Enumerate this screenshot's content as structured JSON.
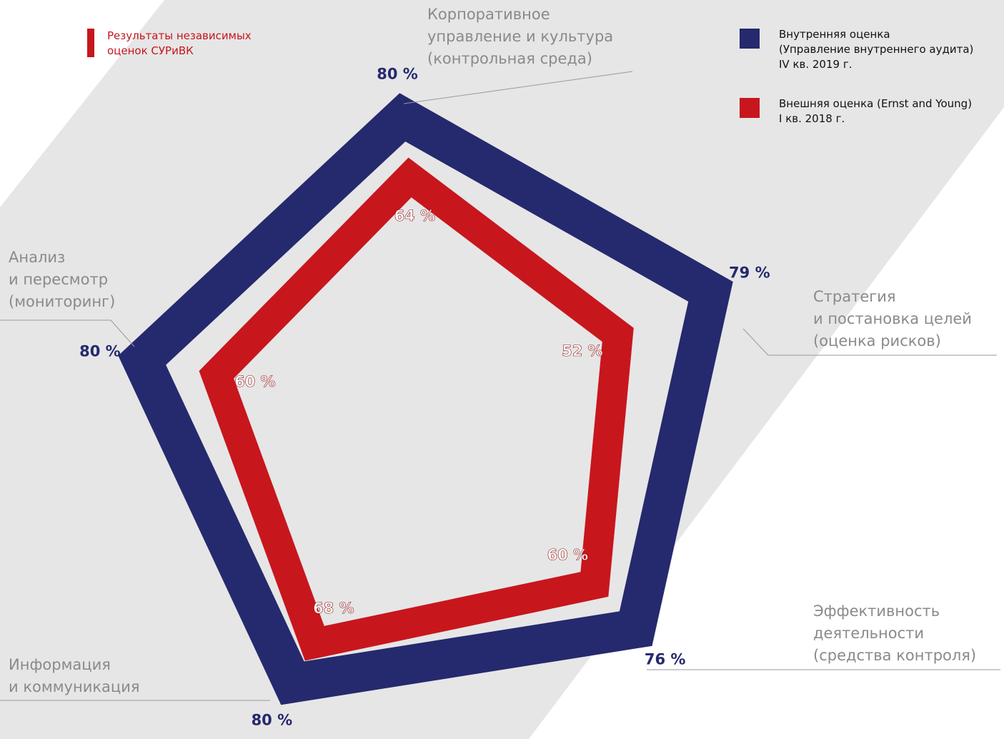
{
  "chart_data": {
    "type": "radar",
    "title": "Результаты независимых\nоценок СУРиВК",
    "categories": [
      "Корпоративное\nуправление и культура\n(контрольная среда)",
      "Стратегия\nи постановка целей\n(оценка рисков)",
      "Эффективность\nдеятельности\n(средства контроля)",
      "Информация\nи коммуникация",
      "Анализ\nи пересмотр\n(мониторинг)"
    ],
    "rlim": [
      0,
      100
    ],
    "series": [
      {
        "name": "Внутренняя оценка\n(Управление внутреннего аудита)\nIV кв. 2019 г.",
        "color": "#25296e",
        "values": [
          80,
          79,
          76,
          80,
          80
        ],
        "value_labels": [
          "80 %",
          "79 %",
          "76 %",
          "80 %",
          "80 %"
        ]
      },
      {
        "name": "Внешняя оценка (Ernst and Young)\nI кв. 2018 г.",
        "color": "#c8161d",
        "values": [
          64,
          52,
          60,
          68,
          60
        ],
        "value_labels": [
          "64 %",
          "52 %",
          "60 %",
          "68 %",
          "60 %"
        ]
      }
    ]
  }
}
